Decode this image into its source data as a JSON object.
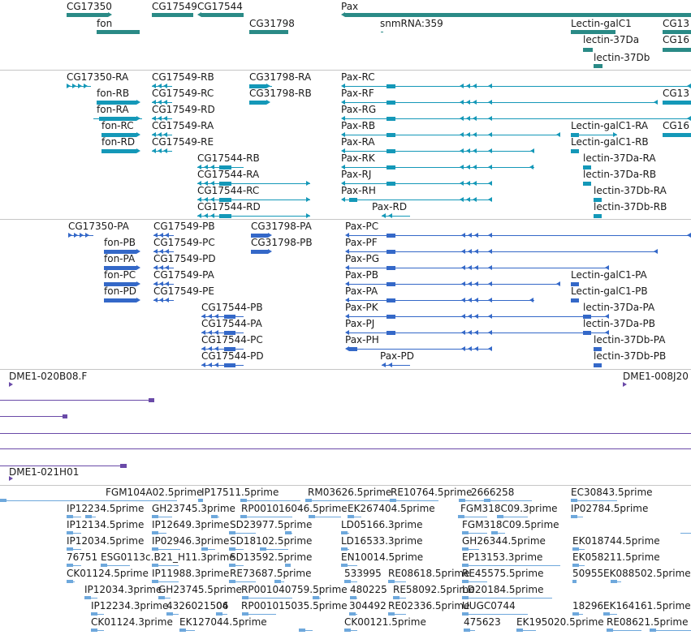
{
  "colors": {
    "gene": "#2a8a86",
    "transcript": "#1498b8",
    "protein": "#3468c8",
    "clone": "#6a4aa8",
    "est": "#6ea8dc",
    "divider": "#c6c6c6",
    "label": "#1a1a1a"
  },
  "tracks": {
    "genes": {
      "labels": [
        "CG17350",
        "CG17549",
        "CG17544",
        "fon",
        "CG31798",
        "Pax",
        "snmRNA:359",
        "Lectin-galC1",
        "CG13",
        "CG16",
        "lectin-37Da",
        "lectin-37Db"
      ]
    },
    "transcripts": {
      "labels": [
        "CG17350-RA",
        "CG17549-RB",
        "CG31798-RA",
        "Pax-RC",
        "fon-RB",
        "CG17549-RC",
        "CG31798-RB",
        "Pax-RF",
        "CG13",
        "fon-RA",
        "CG17549-RD",
        "Pax-RG",
        "fon-RC",
        "CG17549-RA",
        "Pax-RB",
        "Lectin-galC1-RA",
        "CG16",
        "fon-RD",
        "CG17549-RE",
        "Pax-RA",
        "Lectin-galC1-RB",
        "CG17544-RB",
        "Pax-RK",
        "lectin-37Da-RA",
        "CG17544-RA",
        "Pax-RJ",
        "lectin-37Da-RB",
        "CG17544-RC",
        "Pax-RH",
        "lectin-37Db-RA",
        "CG17544-RD",
        "Pax-RD",
        "lectin-37Db-RB"
      ]
    },
    "proteins": {
      "labels": [
        "CG17350-PA",
        "CG17549-PB",
        "CG31798-PA",
        "Pax-PC",
        "fon-PB",
        "CG17549-PC",
        "CG31798-PB",
        "Pax-PF",
        "fon-PA",
        "CG17549-PD",
        "Pax-PG",
        "fon-PC",
        "CG17549-PA",
        "Pax-PB",
        "Lectin-galC1-PA",
        "fon-PD",
        "CG17549-PE",
        "Pax-PA",
        "Lectin-galC1-PB",
        "CG17544-PB",
        "Pax-PK",
        "lectin-37Da-PA",
        "CG17544-PA",
        "Pax-PJ",
        "lectin-37Da-PB",
        "CG17544-PC",
        "Pax-PH",
        "lectin-37Db-PA",
        "CG17544-PD",
        "Pax-PD",
        "lectin-37Db-PB"
      ]
    },
    "clones": {
      "labels": [
        "DME1-020B08.F",
        "DME1-008J20",
        "DME1-021H01"
      ]
    },
    "ests": {
      "labels": [
        "FGM104A02.5prime",
        "IP17511.5prime",
        "RM03626.5prime",
        "RE10764.5prime",
        "2666258",
        "EC30843.5prime",
        "IP12234.5prime",
        "GH23745.3prime",
        "RP001016046.5prime",
        "EK267404.5prime",
        "FGM318C09.3prime",
        "IP02784.5prime",
        "IP12134.5prime",
        "IP12649.3prime",
        "SD23977.5prime",
        "LD05166.3prime",
        "FGM318C09.5prime",
        "IP12034.5prime",
        "IP02946.3prime",
        "SD18102.5prime",
        "LD16533.3prime",
        "GH26344.5prime",
        "EK018744.5prime",
        "76751",
        "ESG0113c.B21_H11.3prime",
        "SD13592.5prime",
        "EN10014.5prime",
        "EP13153.3prime",
        "EK058211.5prime",
        "CK01124.5prime",
        "IP11988.3prime",
        "RE73687.5prime",
        "533995",
        "RE08618.5prime",
        "RE45575.5prime",
        "50955",
        "EK088502.5prime",
        "IP12034.3prime",
        "GH23745.5prime",
        "RP001040759.5prime",
        "480225",
        "RE58092.5prime",
        "LD20184.5prime",
        "IP12234.3prime",
        "4326021506",
        "04",
        "RP001015035.5prime",
        "304492",
        "RE02336.5prime",
        "UUGC0744",
        "18296",
        "EK164161.5prime",
        "CK01124.3prime",
        "EK127044.5prime",
        "CK00121.5prime",
        "475623",
        "EK195020.5prime",
        "RE08621.5prime"
      ]
    }
  }
}
